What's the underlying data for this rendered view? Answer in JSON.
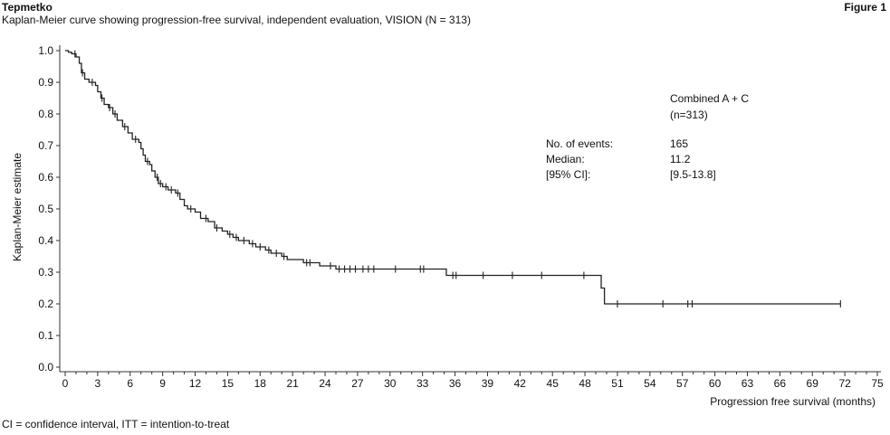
{
  "header": {
    "brand": "Tepmetko",
    "figure_label": "Figure 1",
    "subtitle": "Kaplan-Meier curve showing progression-free survival, independent evaluation, VISION (N = 313)"
  },
  "footnote": "CI = confidence interval, ITT = intention-to-treat",
  "stats": {
    "group_name": "Combined A + C",
    "group_n": "(n=313)",
    "rows": [
      {
        "label": "No. of events:",
        "value": "165"
      },
      {
        "label": "Median:",
        "value": "11.2"
      },
      {
        "label": "[95% CI]:",
        "value": "[9.5-13.8]"
      }
    ]
  },
  "colors": {
    "line": "#222222",
    "axis": "#333333",
    "text": "#111111"
  },
  "chart_data": {
    "type": "line",
    "subtype": "kaplan-meier-step",
    "title": "",
    "xlabel": "Progression free survival (months)",
    "ylabel": "Kaplan-Meier estimate",
    "xlim": [
      0,
      75
    ],
    "ylim": [
      0,
      1
    ],
    "xticks": [
      0,
      3,
      6,
      9,
      12,
      15,
      18,
      21,
      24,
      27,
      30,
      33,
      36,
      39,
      42,
      45,
      48,
      51,
      54,
      57,
      60,
      63,
      66,
      69,
      72,
      75
    ],
    "yticks": [
      0.0,
      0.1,
      0.2,
      0.3,
      0.4,
      0.5,
      0.6,
      0.7,
      0.8,
      0.9,
      1.0
    ],
    "ytick_labels": [
      "0.0",
      "0.1",
      "0.2",
      "0.3",
      "0.4",
      "0.5",
      "0.6",
      "0.7",
      "0.8",
      "0.9",
      "1.0"
    ],
    "grid": false,
    "legend": "none",
    "series": [
      {
        "steps": [
          [
            0,
            1.0
          ],
          [
            0.3,
            0.995
          ],
          [
            0.6,
            0.99
          ],
          [
            1.0,
            0.98
          ],
          [
            1.3,
            0.96
          ],
          [
            1.5,
            0.93
          ],
          [
            1.8,
            0.91
          ],
          [
            2.2,
            0.9
          ],
          [
            2.8,
            0.89
          ],
          [
            3.0,
            0.87
          ],
          [
            3.3,
            0.85
          ],
          [
            3.6,
            0.83
          ],
          [
            4.0,
            0.82
          ],
          [
            4.4,
            0.8
          ],
          [
            4.8,
            0.78
          ],
          [
            5.3,
            0.76
          ],
          [
            5.8,
            0.74
          ],
          [
            6.2,
            0.72
          ],
          [
            6.8,
            0.71
          ],
          [
            7.0,
            0.69
          ],
          [
            7.2,
            0.67
          ],
          [
            7.4,
            0.65
          ],
          [
            7.8,
            0.64
          ],
          [
            8.0,
            0.62
          ],
          [
            8.3,
            0.6
          ],
          [
            8.6,
            0.58
          ],
          [
            9.0,
            0.57
          ],
          [
            9.5,
            0.56
          ],
          [
            10.2,
            0.55
          ],
          [
            10.6,
            0.53
          ],
          [
            11.0,
            0.51
          ],
          [
            11.3,
            0.5
          ],
          [
            12.0,
            0.49
          ],
          [
            12.5,
            0.47
          ],
          [
            13.2,
            0.46
          ],
          [
            13.8,
            0.44
          ],
          [
            14.5,
            0.43
          ],
          [
            15.0,
            0.42
          ],
          [
            15.5,
            0.41
          ],
          [
            16.0,
            0.4
          ],
          [
            17.0,
            0.39
          ],
          [
            17.6,
            0.38
          ],
          [
            18.5,
            0.37
          ],
          [
            19.0,
            0.36
          ],
          [
            20.0,
            0.35
          ],
          [
            20.5,
            0.34
          ],
          [
            22.0,
            0.33
          ],
          [
            23.5,
            0.32
          ],
          [
            25.0,
            0.31
          ],
          [
            35.2,
            0.29
          ],
          [
            49.5,
            0.25
          ],
          [
            49.8,
            0.2
          ],
          [
            71.6,
            0.2
          ]
        ],
        "censored": [
          [
            0.9,
            0.99
          ],
          [
            1.6,
            0.93
          ],
          [
            2.5,
            0.9
          ],
          [
            3.4,
            0.85
          ],
          [
            4.1,
            0.82
          ],
          [
            4.6,
            0.8
          ],
          [
            5.5,
            0.76
          ],
          [
            6.5,
            0.72
          ],
          [
            7.6,
            0.65
          ],
          [
            8.5,
            0.6
          ],
          [
            8.8,
            0.58
          ],
          [
            9.3,
            0.57
          ],
          [
            9.8,
            0.56
          ],
          [
            10.4,
            0.55
          ],
          [
            11.6,
            0.5
          ],
          [
            13.0,
            0.47
          ],
          [
            14.0,
            0.44
          ],
          [
            15.2,
            0.42
          ],
          [
            15.8,
            0.41
          ],
          [
            16.5,
            0.4
          ],
          [
            17.3,
            0.39
          ],
          [
            18.0,
            0.38
          ],
          [
            18.8,
            0.37
          ],
          [
            19.5,
            0.36
          ],
          [
            20.2,
            0.35
          ],
          [
            22.3,
            0.33
          ],
          [
            22.6,
            0.33
          ],
          [
            24.5,
            0.32
          ],
          [
            25.3,
            0.31
          ],
          [
            25.8,
            0.31
          ],
          [
            26.3,
            0.31
          ],
          [
            26.8,
            0.31
          ],
          [
            27.5,
            0.31
          ],
          [
            28.0,
            0.31
          ],
          [
            28.5,
            0.31
          ],
          [
            30.5,
            0.31
          ],
          [
            32.8,
            0.31
          ],
          [
            33.1,
            0.31
          ],
          [
            35.8,
            0.29
          ],
          [
            36.1,
            0.29
          ],
          [
            38.6,
            0.29
          ],
          [
            41.3,
            0.29
          ],
          [
            44.0,
            0.29
          ],
          [
            47.9,
            0.29
          ],
          [
            51.0,
            0.2
          ],
          [
            55.2,
            0.2
          ],
          [
            57.5,
            0.2
          ],
          [
            57.9,
            0.2
          ],
          [
            71.6,
            0.2
          ]
        ]
      }
    ]
  }
}
